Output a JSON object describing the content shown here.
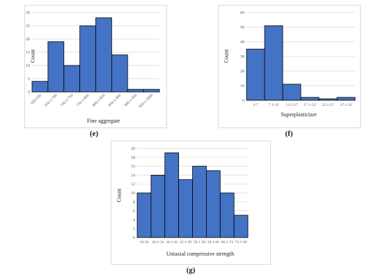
{
  "panels": {
    "e": {
      "label": "(e)"
    },
    "f": {
      "label": "(f)"
    },
    "g": {
      "label": "(g)"
    }
  },
  "colors": {
    "bar": "#4472c4",
    "bar_edge": "#000000",
    "grid": "#d9d9d9",
    "text": "#595959"
  },
  "chart_data": [
    {
      "id": "e",
      "type": "bar",
      "title": "",
      "xlabel": "Fine aggregate",
      "ylabel": "Count",
      "categories": [
        "600-650",
        "650.1-700",
        "700.1-750",
        "750.1-800",
        "800.1-850",
        "850.1-900",
        "900.1-950",
        "950.1-1000"
      ],
      "values": [
        4,
        19,
        10,
        25,
        28,
        14,
        1,
        1
      ],
      "ylim": [
        0,
        30
      ],
      "yticks": [
        0,
        5,
        10,
        15,
        20,
        25,
        30
      ],
      "grid": true,
      "rotated_ticks": true
    },
    {
      "id": "f",
      "type": "bar",
      "title": "",
      "xlabel": "Superplasticizer",
      "ylabel": "Count",
      "categories": [
        "2-7",
        "7.1-12",
        "12.1-17",
        "17.1-22",
        "22.1-27",
        "27.1-32"
      ],
      "values": [
        35,
        51,
        11,
        2,
        1,
        2
      ],
      "ylim": [
        0,
        60
      ],
      "yticks": [
        0,
        10,
        20,
        30,
        40,
        50,
        60
      ],
      "grid": true,
      "rotated_ticks": false
    },
    {
      "id": "g",
      "type": "bar",
      "title": "",
      "xlabel": "Uniaxial compressive strength",
      "ylabel": "Count",
      "categories": [
        "18-26",
        "26.1-34",
        "34.1-42",
        "42.1-50",
        "50.1-58",
        "58.1-66",
        "66.1-74",
        "74.1-82"
      ],
      "values": [
        10,
        14,
        19,
        13,
        16,
        15,
        10,
        5
      ],
      "ylim": [
        0,
        20
      ],
      "yticks": [
        0,
        2,
        4,
        6,
        8,
        10,
        12,
        14,
        16,
        18,
        20
      ],
      "grid": true,
      "rotated_ticks": false
    }
  ]
}
